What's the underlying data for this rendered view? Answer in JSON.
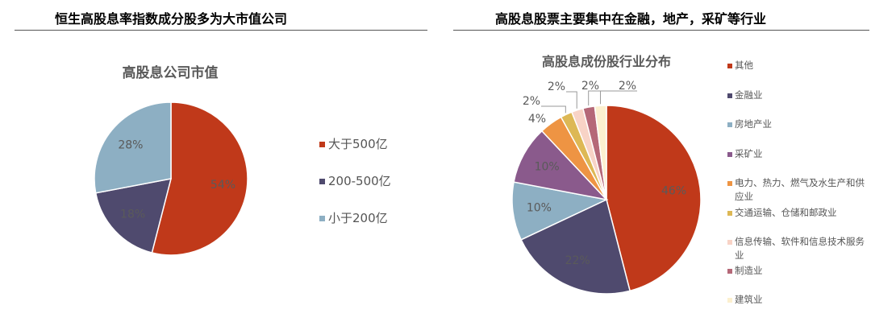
{
  "left_title": "恒生高股息率指数成分股多为大市值公司",
  "right_title": "高股息股票主要集中在金融，地产，采矿等行业",
  "chart_data": [
    {
      "type": "pie",
      "title": "高股息公司市值",
      "categories": [
        "大于500亿",
        "200-500亿",
        "小于200亿"
      ],
      "values": [
        54,
        18,
        28
      ],
      "labels": [
        "54%",
        "18%",
        "28%"
      ],
      "colors": [
        "#C0391A",
        "#4F4A6E",
        "#8DAFC3"
      ],
      "legend": "right"
    },
    {
      "type": "pie",
      "title": "高股息成份股行业分布",
      "categories": [
        "其他",
        "金融业",
        "房地产业",
        "采矿业",
        "电力、热力、燃气及水生产和供应业",
        "交通运输、仓储和邮政业",
        "信息传输、软件和信息技术服务业",
        "制造业",
        "建筑业"
      ],
      "values": [
        46,
        22,
        10,
        10,
        4,
        2,
        2,
        2,
        2
      ],
      "labels": [
        "46%",
        "22%",
        "10%",
        "10%",
        "4%",
        "2%",
        "2%",
        "2%",
        "2%"
      ],
      "colors": [
        "#C0391A",
        "#4F4A6E",
        "#8DAFC3",
        "#8A5A8C",
        "#EE9443",
        "#DDB855",
        "#F8D3C6",
        "#B56878",
        "#FCF0CF"
      ],
      "legend": "right"
    }
  ]
}
